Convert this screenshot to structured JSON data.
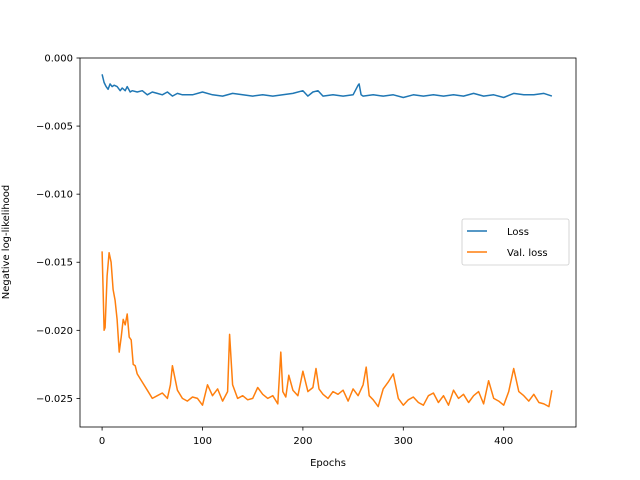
{
  "chart_data": {
    "type": "line",
    "title": "",
    "xlabel": "Epochs",
    "ylabel": "Negative log-likelihood",
    "xlim": [
      -22,
      472
    ],
    "ylim": [
      -0.0271,
      0.0
    ],
    "xticks": [
      0,
      100,
      200,
      300,
      400
    ],
    "xtick_labels": [
      "0",
      "100",
      "200",
      "300",
      "400"
    ],
    "yticks": [
      0.0,
      -0.005,
      -0.01,
      -0.015,
      -0.02,
      -0.025
    ],
    "ytick_labels": [
      "0.000",
      "−0.005",
      "−0.010",
      "−0.015",
      "−0.020",
      "−0.025"
    ],
    "grid": false,
    "legend": "center-right",
    "series": [
      {
        "name": "Loss",
        "color": "#1f77b4",
        "x": [
          0,
          2,
          4,
          6,
          8,
          10,
          12,
          15,
          18,
          20,
          23,
          25,
          28,
          30,
          35,
          40,
          45,
          50,
          55,
          60,
          65,
          70,
          75,
          80,
          90,
          100,
          110,
          120,
          130,
          140,
          150,
          160,
          170,
          180,
          190,
          200,
          205,
          210,
          215,
          220,
          230,
          240,
          250,
          255,
          256,
          258,
          260,
          270,
          280,
          290,
          300,
          310,
          320,
          330,
          340,
          350,
          360,
          370,
          380,
          390,
          400,
          410,
          420,
          430,
          440,
          448
        ],
        "y": [
          -0.0012,
          -0.0018,
          -0.0021,
          -0.0023,
          -0.0019,
          -0.0021,
          -0.002,
          -0.0021,
          -0.0024,
          -0.0022,
          -0.0024,
          -0.0021,
          -0.0025,
          -0.0024,
          -0.0025,
          -0.0024,
          -0.0027,
          -0.0025,
          -0.0026,
          -0.0027,
          -0.0025,
          -0.0028,
          -0.0026,
          -0.0027,
          -0.0027,
          -0.0025,
          -0.0027,
          -0.0028,
          -0.0026,
          -0.0027,
          -0.0028,
          -0.0027,
          -0.0028,
          -0.0027,
          -0.0026,
          -0.0024,
          -0.0028,
          -0.0025,
          -0.0024,
          -0.0028,
          -0.0027,
          -0.0028,
          -0.0027,
          -0.002,
          -0.0019,
          -0.0027,
          -0.0028,
          -0.0027,
          -0.0028,
          -0.0027,
          -0.0029,
          -0.0027,
          -0.0028,
          -0.0027,
          -0.0028,
          -0.0027,
          -0.0028,
          -0.0026,
          -0.0028,
          -0.0027,
          -0.0029,
          -0.0026,
          -0.0027,
          -0.0027,
          -0.0026,
          -0.0028
        ]
      },
      {
        "name": "Val. loss",
        "color": "#ff7f0e",
        "x": [
          0,
          1,
          2,
          3,
          5,
          7,
          9,
          11,
          13,
          15,
          17,
          19,
          21,
          23,
          25,
          27,
          29,
          31,
          33,
          35,
          40,
          45,
          50,
          55,
          60,
          65,
          68,
          70,
          75,
          80,
          85,
          90,
          95,
          100,
          105,
          110,
          115,
          120,
          125,
          127,
          130,
          135,
          140,
          145,
          150,
          155,
          160,
          165,
          170,
          175,
          178,
          180,
          183,
          186,
          190,
          195,
          200,
          205,
          210,
          213,
          216,
          220,
          225,
          230,
          235,
          240,
          245,
          250,
          255,
          260,
          263,
          266,
          270,
          275,
          280,
          285,
          290,
          295,
          300,
          305,
          310,
          315,
          320,
          325,
          330,
          335,
          340,
          345,
          350,
          355,
          360,
          365,
          370,
          375,
          380,
          385,
          390,
          395,
          400,
          405,
          410,
          415,
          420,
          425,
          430,
          435,
          440,
          445,
          448
        ],
        "y": [
          -0.0142,
          -0.017,
          -0.02,
          -0.0198,
          -0.016,
          -0.0143,
          -0.015,
          -0.017,
          -0.0178,
          -0.0192,
          -0.0216,
          -0.0205,
          -0.0192,
          -0.0196,
          -0.0188,
          -0.0205,
          -0.0207,
          -0.0225,
          -0.0226,
          -0.0232,
          -0.0238,
          -0.0244,
          -0.025,
          -0.0248,
          -0.0246,
          -0.025,
          -0.024,
          -0.0226,
          -0.0244,
          -0.025,
          -0.0252,
          -0.0249,
          -0.025,
          -0.0255,
          -0.024,
          -0.0248,
          -0.0243,
          -0.0252,
          -0.0245,
          -0.0203,
          -0.024,
          -0.025,
          -0.0248,
          -0.0251,
          -0.025,
          -0.0242,
          -0.0247,
          -0.025,
          -0.0248,
          -0.0254,
          -0.0216,
          -0.0245,
          -0.0249,
          -0.0233,
          -0.0244,
          -0.0248,
          -0.023,
          -0.0245,
          -0.0242,
          -0.0228,
          -0.0243,
          -0.0247,
          -0.025,
          -0.0245,
          -0.0247,
          -0.0244,
          -0.0252,
          -0.0243,
          -0.0248,
          -0.024,
          -0.0227,
          -0.0248,
          -0.0251,
          -0.0256,
          -0.0243,
          -0.0238,
          -0.0232,
          -0.025,
          -0.0255,
          -0.0251,
          -0.0249,
          -0.0253,
          -0.0255,
          -0.0248,
          -0.0246,
          -0.0253,
          -0.0248,
          -0.0255,
          -0.0244,
          -0.025,
          -0.0247,
          -0.0253,
          -0.0248,
          -0.0245,
          -0.0254,
          -0.0237,
          -0.025,
          -0.0252,
          -0.0255,
          -0.0245,
          -0.0228,
          -0.0245,
          -0.0248,
          -0.0252,
          -0.0247,
          -0.0253,
          -0.0254,
          -0.0256,
          -0.0244
        ]
      }
    ]
  }
}
